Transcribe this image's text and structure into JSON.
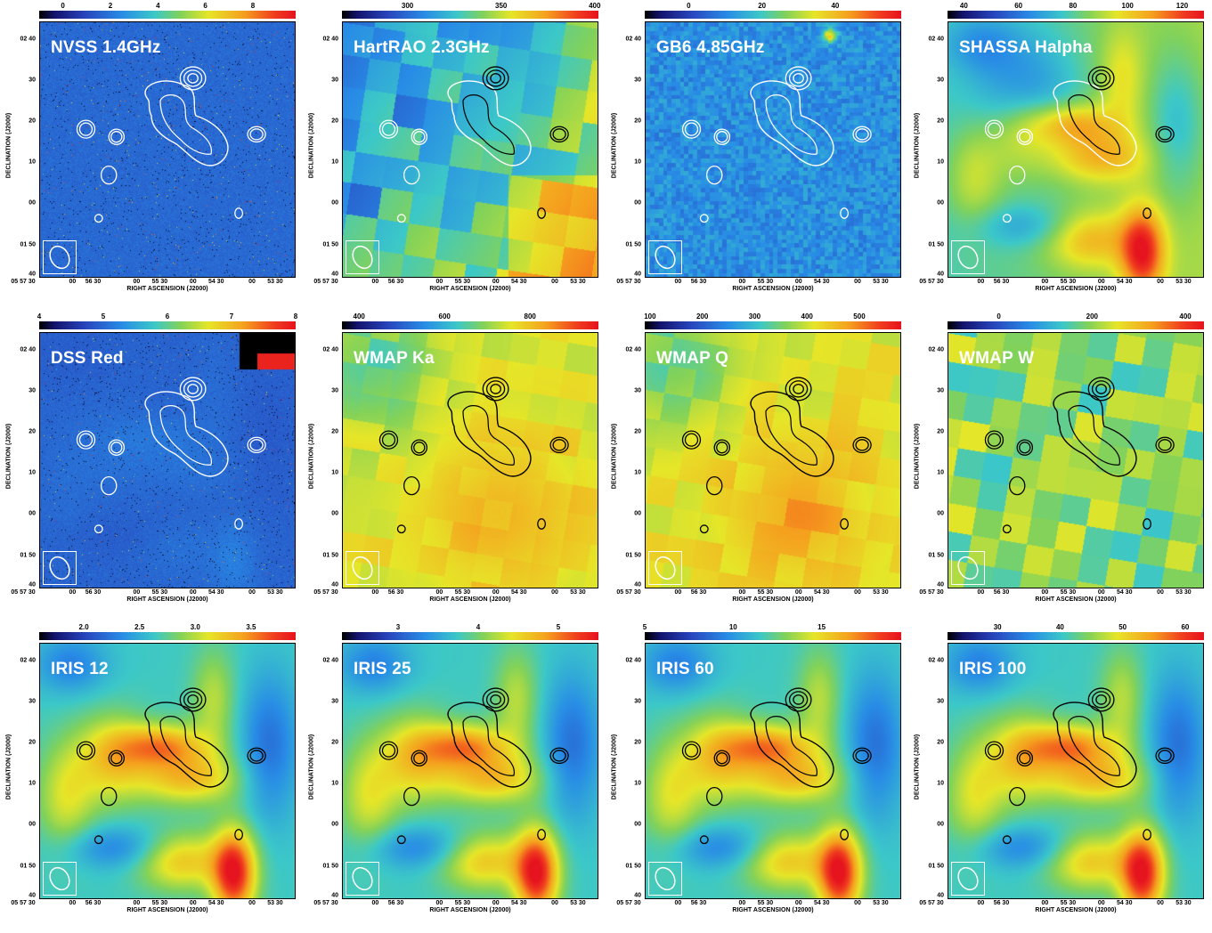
{
  "figure": {
    "axis_labels": {
      "x": "RIGHT ASCENSION (J2000)",
      "y": "DECLINATION (J2000)"
    },
    "y_ticks": [
      "02 40",
      "30",
      "20",
      "10",
      "00",
      "01 50",
      "40"
    ],
    "x_ticks": [
      "05 57 30",
      "00",
      "56 30",
      "00",
      "55 30",
      "00",
      "54 30",
      "00",
      "53 30"
    ],
    "panels": [
      {
        "label": "NVSS 1.4GHz",
        "colorbar_ticks": [
          "0",
          "2",
          "4",
          "6",
          "8"
        ],
        "colorbar_range": [
          -1,
          9.8
        ],
        "style": "noise",
        "contour_color": "white",
        "colors": {
          "background": "#1e3c96"
        }
      },
      {
        "label": "HartRAO 2.3GHz",
        "colorbar_ticks": [
          "300",
          "350",
          "400"
        ],
        "colorbar_range": [
          265,
          402
        ],
        "style": "blocky",
        "contour_color": "mixed",
        "colors": {
          "background": "#3278c8"
        }
      },
      {
        "label": "GB6 4.85GHz",
        "colorbar_ticks": [
          "0",
          "20",
          "40"
        ],
        "colorbar_range": [
          -12,
          58
        ],
        "style": "smoothnoise",
        "contour_color": "white",
        "colors": {
          "background": "#2882d2"
        }
      },
      {
        "label": "SHASSA Halpha",
        "colorbar_ticks": [
          "40",
          "60",
          "80",
          "100",
          "120"
        ],
        "colorbar_range": [
          34,
          128
        ],
        "style": "halpha",
        "contour_color": "mixed",
        "colors": {
          "background": "#e6e632"
        }
      },
      {
        "label": "DSS Red",
        "colorbar_ticks": [
          "4",
          "5",
          "6",
          "7",
          "8"
        ],
        "colorbar_range": [
          4,
          8
        ],
        "style": "dss",
        "contour_color": "white",
        "colors": {
          "background": "#2855b4"
        }
      },
      {
        "label": "WMAP Ka",
        "colorbar_ticks": [
          "400",
          "600",
          "800"
        ],
        "colorbar_range": [
          360,
          960
        ],
        "style": "wmap",
        "contour_color": "black",
        "colors": {
          "background": "#f5c81e"
        }
      },
      {
        "label": "WMAP Q",
        "colorbar_ticks": [
          "100",
          "200",
          "300",
          "400",
          "500"
        ],
        "colorbar_range": [
          90,
          580
        ],
        "style": "wmap",
        "contour_color": "black",
        "colors": {
          "background": "#f0c828"
        }
      },
      {
        "label": "WMAP W",
        "colorbar_ticks": [
          "0",
          "200",
          "400"
        ],
        "colorbar_range": [
          -110,
          440
        ],
        "style": "wmapw",
        "contour_color": "black",
        "colors": {
          "background": "#c8dc3c"
        }
      },
      {
        "label": "IRIS 12",
        "colorbar_ticks": [
          "2.0",
          "2.5",
          "3.0",
          "3.5"
        ],
        "colorbar_range": [
          1.6,
          3.9
        ],
        "style": "iris",
        "contour_color": "black",
        "colors": {
          "background": "#3c8ce6"
        }
      },
      {
        "label": "IRIS 25",
        "colorbar_ticks": [
          "3",
          "4",
          "5"
        ],
        "colorbar_range": [
          2.3,
          5.5
        ],
        "style": "iris",
        "contour_color": "black",
        "colors": {
          "background": "#3c8ce6"
        }
      },
      {
        "label": "IRIS 60",
        "colorbar_ticks": [
          "5",
          "10",
          "15"
        ],
        "colorbar_range": [
          5,
          19.5
        ],
        "style": "iris",
        "contour_color": "black",
        "colors": {
          "background": "#3c8ce6"
        }
      },
      {
        "label": "IRIS 100",
        "colorbar_ticks": [
          "30",
          "40",
          "50",
          "60"
        ],
        "colorbar_range": [
          22,
          63
        ],
        "style": "iris",
        "contour_color": "black",
        "colors": {
          "background": "#3c8ce6"
        }
      }
    ]
  }
}
